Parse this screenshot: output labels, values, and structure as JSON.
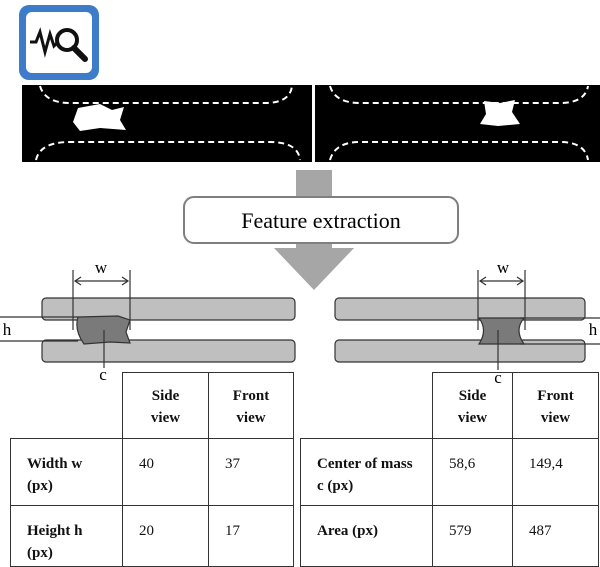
{
  "process_label": "Feature extraction",
  "diagrams": [
    {
      "width_label": "w",
      "height_label": "h",
      "center_label": "c"
    },
    {
      "width_label": "w",
      "height_label": "h",
      "center_label": "c"
    }
  ],
  "tables": [
    {
      "columns": [
        "Side view",
        "Front view"
      ],
      "rows": [
        [
          "Width w (px)",
          "40",
          "37"
        ],
        [
          "Height h (px)",
          "20",
          "17"
        ]
      ]
    },
    {
      "columns": [
        "Side view",
        "Front view"
      ],
      "rows": [
        [
          "Center of mass c (px)",
          "58,6",
          "149,4"
        ],
        [
          "Area (px)",
          "579",
          "487"
        ]
      ]
    }
  ]
}
